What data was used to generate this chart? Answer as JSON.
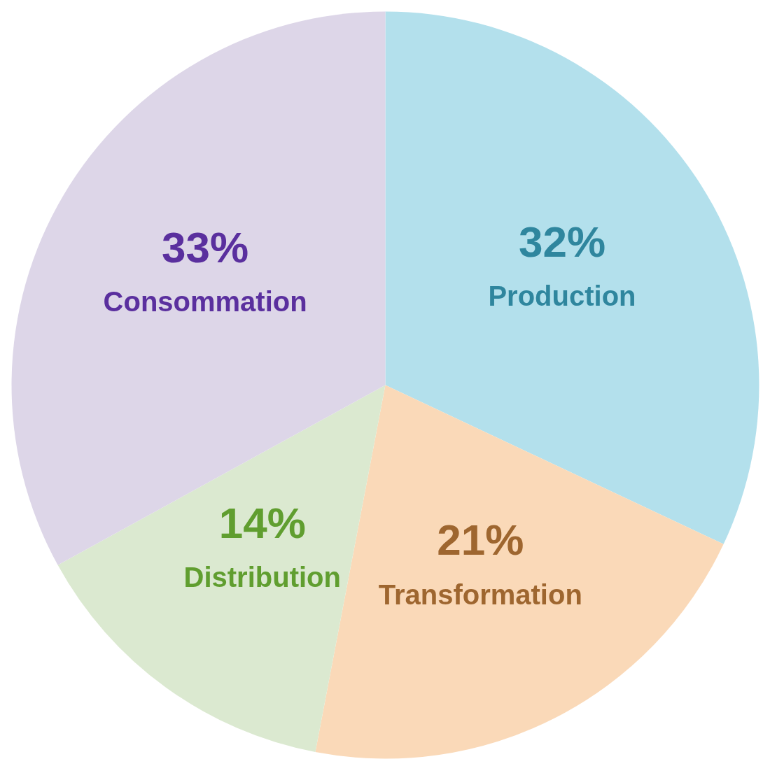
{
  "chart_data": {
    "type": "pie",
    "categories": [
      "Production",
      "Transformation",
      "Distribution",
      "Consommation"
    ],
    "values": [
      32,
      21,
      14,
      33
    ],
    "value_labels": [
      "32%",
      "21%",
      "14%",
      "33%"
    ],
    "colors": [
      "#b3e0ec",
      "#fad9b8",
      "#dbe9d0",
      "#ddd6e8"
    ]
  }
}
